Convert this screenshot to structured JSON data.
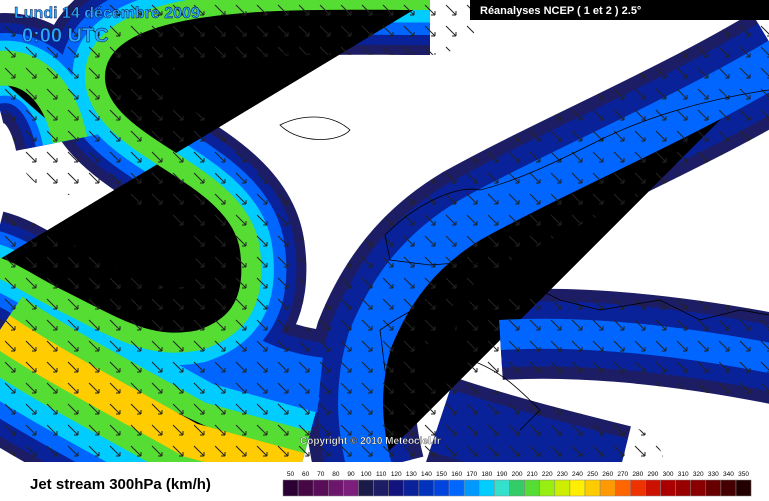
{
  "header": {
    "date": "Lundi 14 décembre 2009",
    "time": "0:00 UTC",
    "source": "Réanalyses NCEP ( 1 et 2 ) 2.5°"
  },
  "copyright": "Copyright © 2010 Meteociel.fr",
  "legend": {
    "title": "Jet stream 300hPa (km/h)",
    "levels": [
      {
        "label": 50,
        "color": "#2b0033"
      },
      {
        "label": 60,
        "color": "#450845"
      },
      {
        "label": 70,
        "color": "#5a0e5a"
      },
      {
        "label": 80,
        "color": "#6c166c"
      },
      {
        "label": 90,
        "color": "#7c1e7c"
      },
      {
        "label": 100,
        "color": "#1b1b4a"
      },
      {
        "label": 110,
        "color": "#1d1d66"
      },
      {
        "label": 120,
        "color": "#13137e"
      },
      {
        "label": 130,
        "color": "#0a2299"
      },
      {
        "label": 140,
        "color": "#0033bb"
      },
      {
        "label": 150,
        "color": "#0044dd"
      },
      {
        "label": 160,
        "color": "#0066ff"
      },
      {
        "label": 170,
        "color": "#0099ff"
      },
      {
        "label": 180,
        "color": "#00ccff"
      },
      {
        "label": 190,
        "color": "#33e0cc"
      },
      {
        "label": 200,
        "color": "#33cc66"
      },
      {
        "label": 210,
        "color": "#55dd33"
      },
      {
        "label": 220,
        "color": "#99ee11"
      },
      {
        "label": 230,
        "color": "#ccee00"
      },
      {
        "label": 240,
        "color": "#ffee00"
      },
      {
        "label": 250,
        "color": "#ffcc00"
      },
      {
        "label": 260,
        "color": "#ff9900"
      },
      {
        "label": 270,
        "color": "#ff6600"
      },
      {
        "label": 280,
        "color": "#ee3300"
      },
      {
        "label": 290,
        "color": "#cc1100"
      },
      {
        "label": 300,
        "color": "#aa0000"
      },
      {
        "label": 310,
        "color": "#990000"
      },
      {
        "label": 320,
        "color": "#880000"
      },
      {
        "label": 330,
        "color": "#660000"
      },
      {
        "label": 340,
        "color": "#440000"
      },
      {
        "label": 350,
        "color": "#220000"
      }
    ]
  }
}
